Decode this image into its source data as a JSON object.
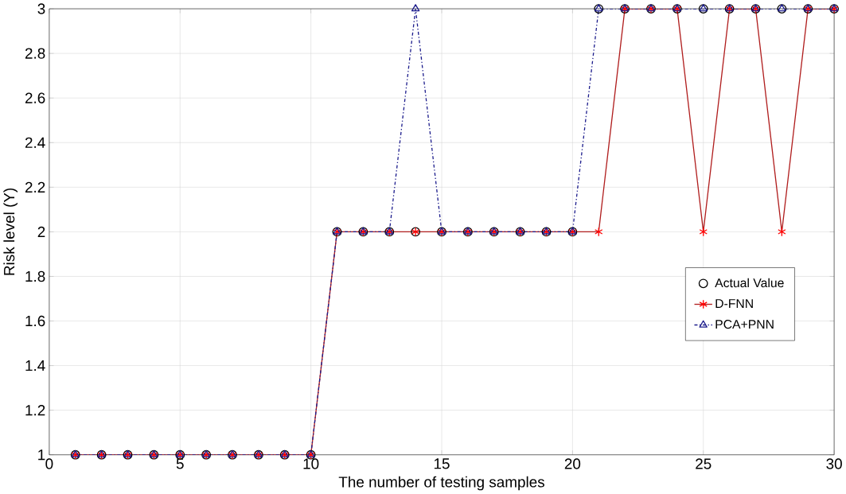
{
  "chart_data": {
    "type": "line",
    "xlabel": "The number of testing samples",
    "ylabel": "Risk level (Y)",
    "x": [
      1,
      2,
      3,
      4,
      5,
      6,
      7,
      8,
      9,
      10,
      11,
      12,
      13,
      14,
      15,
      16,
      17,
      18,
      19,
      20,
      21,
      22,
      23,
      24,
      25,
      26,
      27,
      28,
      29,
      30
    ],
    "series": [
      {
        "name": "Actual Value",
        "type": "scatter",
        "color": "#000000",
        "marker": "circle",
        "values": [
          1,
          1,
          1,
          1,
          1,
          1,
          1,
          1,
          1,
          1,
          2,
          2,
          2,
          2,
          2,
          2,
          2,
          2,
          2,
          2,
          3,
          3,
          3,
          3,
          3,
          3,
          3,
          3,
          3,
          3
        ]
      },
      {
        "name": "D-FNN",
        "color": "#b01e1e",
        "marker": "cross",
        "line_style": "solid",
        "values": [
          1,
          1,
          1,
          1,
          1,
          1,
          1,
          1,
          1,
          1,
          2,
          2,
          2,
          2,
          2,
          2,
          2,
          2,
          2,
          2,
          2,
          3,
          3,
          3,
          2,
          3,
          3,
          2,
          3,
          3
        ]
      },
      {
        "name": "PCA+PNN",
        "color": "#1c1c8c",
        "marker": "triangle",
        "line_style": "dashdot",
        "values": [
          1,
          1,
          1,
          1,
          1,
          1,
          1,
          1,
          1,
          1,
          2,
          2,
          2,
          3,
          2,
          2,
          2,
          2,
          2,
          2,
          3,
          3,
          3,
          3,
          3,
          3,
          3,
          3,
          3,
          3
        ]
      }
    ],
    "xlim": [
      0,
      30
    ],
    "ylim": [
      1,
      3
    ],
    "xticks": [
      0,
      5,
      10,
      15,
      20,
      25,
      30
    ],
    "yticks": [
      1,
      1.2,
      1.4,
      1.6,
      1.8,
      2,
      2.2,
      2.4,
      2.6,
      2.8,
      3
    ],
    "grid": true,
    "legend": "right"
  }
}
